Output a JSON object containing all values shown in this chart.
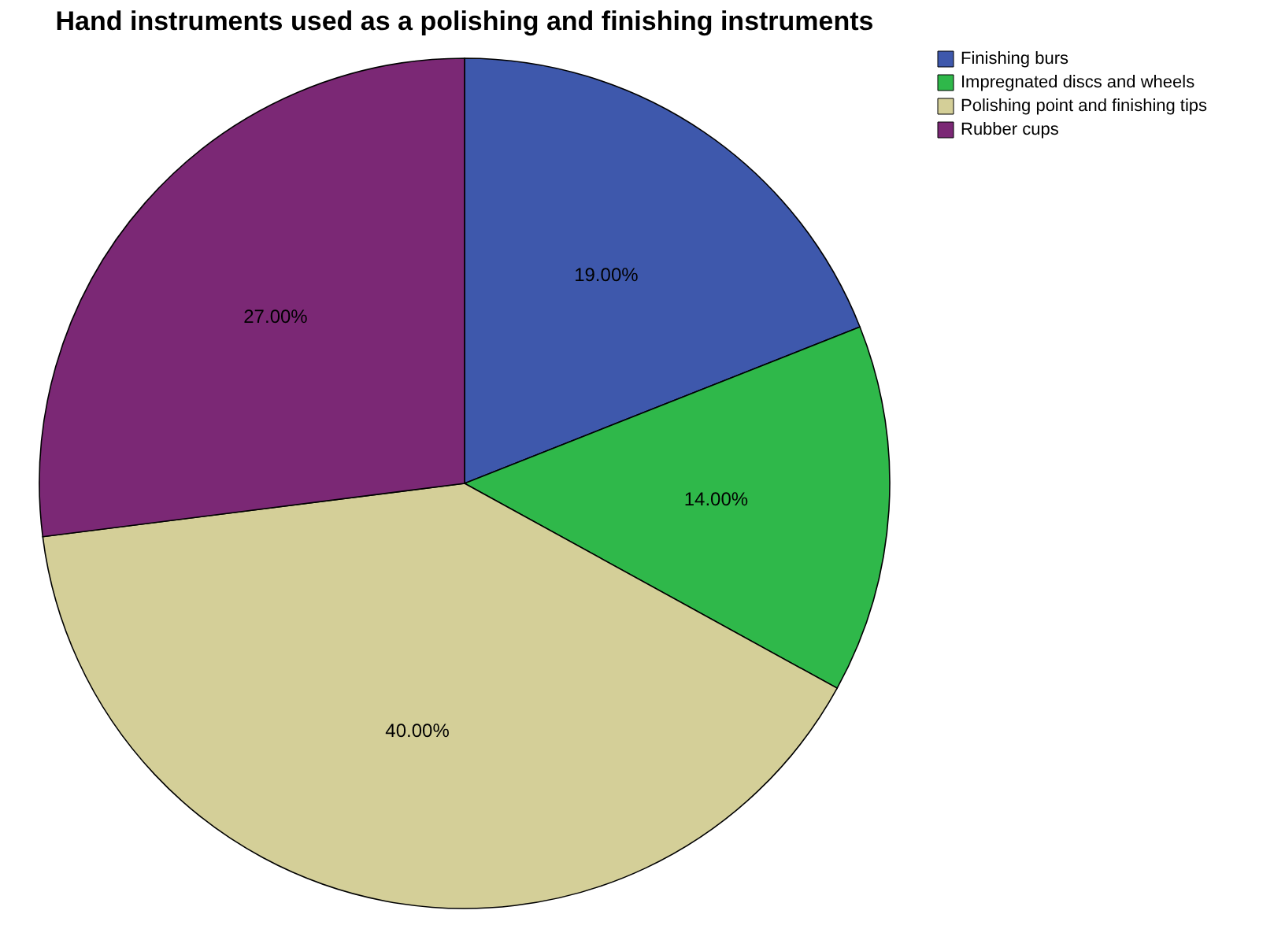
{
  "chart_data": {
    "type": "pie",
    "title": "Hand instruments used as a polishing and finishing instruments",
    "categories": [
      "Finishing burs",
      "Impregnated discs and wheels",
      "Polishing point and finishing tips",
      "Rubber cups"
    ],
    "values": [
      19,
      14,
      40,
      27
    ],
    "colors": [
      "#3e58ac",
      "#2fb84a",
      "#d4cf98",
      "#7b2875"
    ],
    "value_labels": [
      "19.00%",
      "14.00%",
      "40.00%",
      "27.00%"
    ],
    "legend": "top right"
  }
}
